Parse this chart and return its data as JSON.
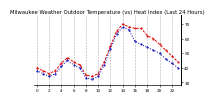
{
  "title": "Milwaukee Weather Outdoor Temperature (vs) Heat Index (Last 24 Hours)",
  "hours": [
    0,
    1,
    2,
    3,
    4,
    5,
    6,
    7,
    8,
    9,
    10,
    11,
    12,
    13,
    14,
    15,
    16,
    17,
    18,
    19,
    20,
    21,
    22,
    23
  ],
  "temp": [
    40,
    38,
    36,
    38,
    43,
    47,
    44,
    42,
    35,
    34,
    36,
    44,
    55,
    65,
    70,
    68,
    67,
    67,
    62,
    60,
    56,
    52,
    48,
    44
  ],
  "heat_index": [
    38,
    36,
    34,
    36,
    41,
    45,
    42,
    40,
    33,
    32,
    34,
    42,
    53,
    63,
    68,
    66,
    58,
    56,
    54,
    52,
    50,
    46,
    43,
    40
  ],
  "temp_color": "#dd0000",
  "heat_color": "#0000bb",
  "ylim": [
    28,
    76
  ],
  "yticks": [
    30,
    40,
    50,
    60,
    70
  ],
  "bg_color": "#ffffff",
  "grid_color": "#999999",
  "title_color": "#000000",
  "title_fontsize": 3.8,
  "tick_fontsize": 3.0,
  "xtick_step": 2
}
